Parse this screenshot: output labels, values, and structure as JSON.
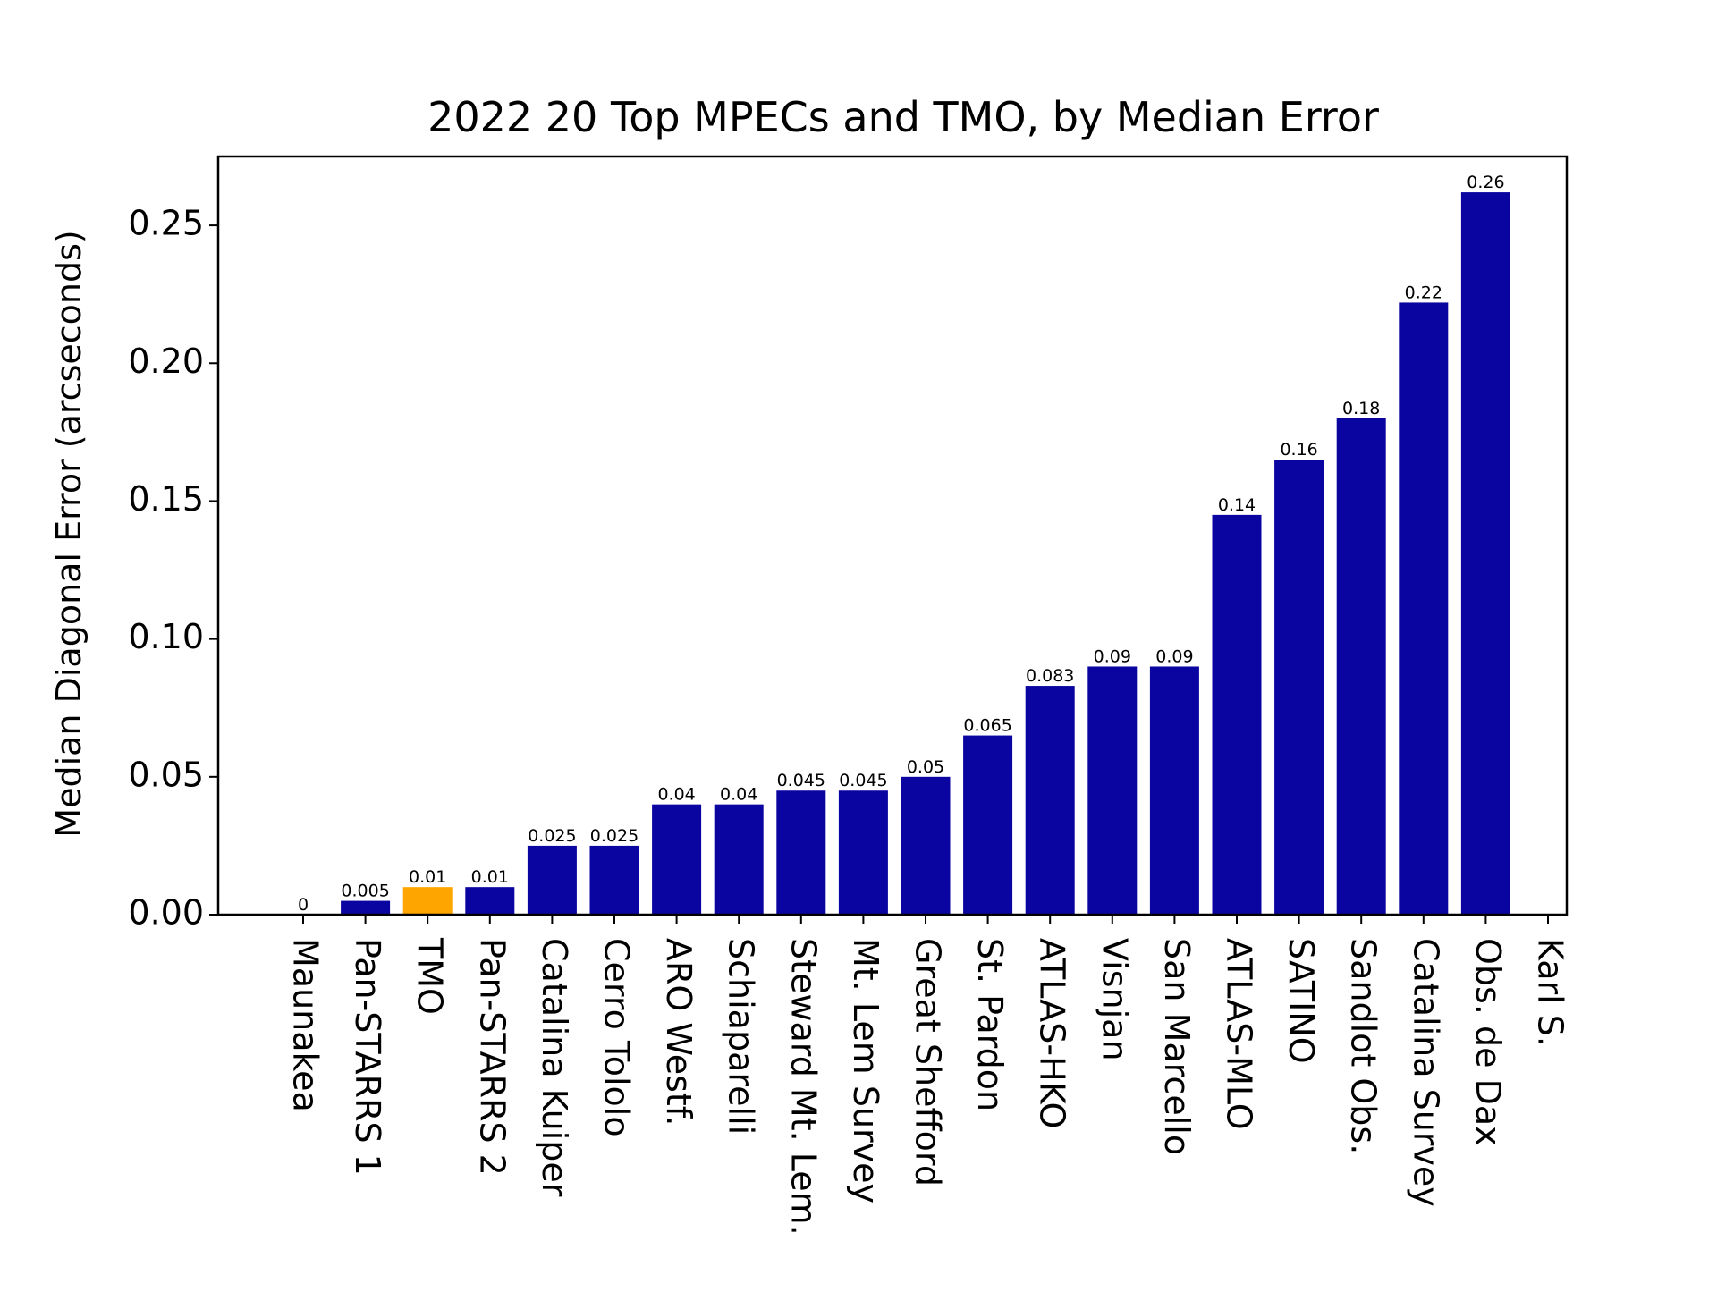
{
  "chart_data": {
    "type": "bar",
    "title": "2022 20 Top MPECs and TMO, by Median Error",
    "xlabel": "",
    "ylabel": "Median Diagonal Error (arcseconds)",
    "ylim": [
      0,
      0.275
    ],
    "yticks": [
      "0.00",
      "0.05",
      "0.10",
      "0.15",
      "0.20",
      "0.25"
    ],
    "grid": false,
    "legend": "none",
    "categories": [
      "Maunakea",
      "Pan-STARRS 1",
      "TMO",
      "Pan-STARRS 2",
      "Catalina Kuiper",
      "Cerro Tololo",
      "ARO Westf.",
      "Schiaparelli",
      "Steward Mt. Lem.",
      "Mt. Lem Survey",
      "Great Shefford",
      "St. Pardon",
      "ATLAS-HKO",
      "Visnjan",
      "San Marcello",
      "ATLAS-MLO",
      "SATINO",
      "Sandlot Obs.",
      "Catalina Survey",
      "Obs. de Dax",
      "Karl S."
    ],
    "values": [
      0,
      0.005,
      0.01,
      0.01,
      0.025,
      0.025,
      0.04,
      0.04,
      0.045,
      0.045,
      0.05,
      0.065,
      0.083,
      0.09,
      0.09,
      0.145,
      0.165,
      0.18,
      0.222,
      0.262,
      null
    ],
    "data_labels": [
      "0",
      "0.005",
      "0.01",
      "0.01",
      "0.025",
      "0.025",
      "0.04",
      "0.04",
      "0.045",
      "0.045",
      "0.05",
      "0.065",
      "0.083",
      "0.09",
      "0.09",
      "0.14",
      "0.16",
      "0.18",
      "0.22",
      "0.26",
      ""
    ],
    "highlight_category": "TMO",
    "colors": {
      "bar": "#0a04a0",
      "highlight": "#ffa500",
      "axis": "#000000"
    }
  }
}
